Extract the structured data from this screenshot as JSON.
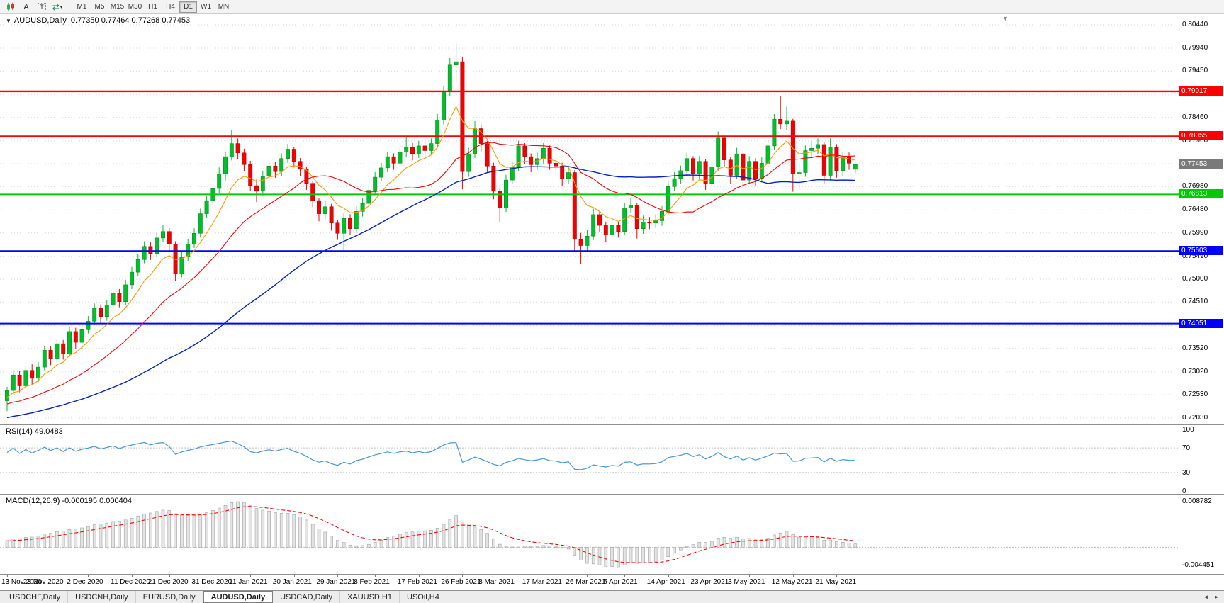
{
  "toolbar": {
    "icons": [
      {
        "name": "candlestick-chart-icon"
      },
      {
        "name": "cursor-tool-icon",
        "glyph": "A"
      },
      {
        "name": "text-tool-icon",
        "glyph": "T"
      },
      {
        "name": "autoscroll-icon",
        "glyph": "⇄",
        "caret": "▾"
      }
    ],
    "timeframes": [
      {
        "label": "M1"
      },
      {
        "label": "M5"
      },
      {
        "label": "M15"
      },
      {
        "label": "M30"
      },
      {
        "label": "H1"
      },
      {
        "label": "H4"
      },
      {
        "label": "D1"
      },
      {
        "label": "W1"
      },
      {
        "label": "MN"
      }
    ],
    "active_timeframe": "D1"
  },
  "main_chart": {
    "collapse_glyph": "▼",
    "title": "AUDUSD,Daily",
    "ohlc": "0.77350 0.77464 0.77268 0.77453",
    "shift_marker_glyph": "▼"
  },
  "chart_data": {
    "type": "candlestick",
    "symbol": "AUDUSD",
    "timeframe": "Daily",
    "last_candle": {
      "open": 0.7735,
      "high": 0.77464,
      "low": 0.77268,
      "close": 0.77453
    },
    "y_axis": {
      "max": 0.8044,
      "min": 0.7203,
      "ticks": [
        {
          "label": "0.80440",
          "price": 0.8044
        },
        {
          "label": "0.79940",
          "price": 0.7994
        },
        {
          "label": "0.79450",
          "price": 0.7945
        },
        {
          "label": "0.78950",
          "price": 0.7895
        },
        {
          "label": "0.78460",
          "price": 0.7846
        },
        {
          "label": "0.77960",
          "price": 0.7796
        },
        {
          "label": "0.77470",
          "price": 0.7747
        },
        {
          "label": "0.76980",
          "price": 0.7698
        },
        {
          "label": "0.76480",
          "price": 0.7648
        },
        {
          "label": "0.75990",
          "price": 0.7599
        },
        {
          "label": "0.75490",
          "price": 0.7549
        },
        {
          "label": "0.75000",
          "price": 0.75
        },
        {
          "label": "0.74510",
          "price": 0.7451
        },
        {
          "label": "0.74010",
          "price": 0.7401
        },
        {
          "label": "0.73520",
          "price": 0.7352
        },
        {
          "label": "0.73020",
          "price": 0.7302
        },
        {
          "label": "0.72530",
          "price": 0.7253
        },
        {
          "label": "0.72030",
          "price": 0.7203
        }
      ]
    },
    "current_price": {
      "label": "0.77453",
      "price": 0.77453,
      "box_color": "#7a7a7a"
    },
    "horizontal_lines": [
      {
        "label": "0.79017",
        "price": 0.79017,
        "color": "#ff0000",
        "width": 2.4
      },
      {
        "label": "0.78055",
        "price": 0.78055,
        "color": "#ff0000",
        "width": 2.4
      },
      {
        "label": "0.76813",
        "price": 0.76813,
        "color": "#00ca00",
        "width": 2
      },
      {
        "label": "0.75603",
        "price": 0.75603,
        "color": "#0000ff",
        "width": 2
      },
      {
        "label": "0.74051",
        "price": 0.74051,
        "color": "#0000ff",
        "width": 2
      }
    ],
    "up_color": "#00bf2a",
    "down_color": "#f40000",
    "up_border": "#077d1c",
    "down_border": "#9b0000",
    "moving_averages": [
      {
        "name": "ma-fast",
        "method": "ema",
        "period": 8,
        "color": "#ff9900",
        "width": 1.1
      },
      {
        "name": "ma-medium",
        "method": "sma",
        "period": 20,
        "color": "#ff0000",
        "width": 1.1
      },
      {
        "name": "ma-slow",
        "method": "sma",
        "period": 50,
        "color": "#0022cc",
        "width": 1.4
      }
    ],
    "candles_ohlc": [
      [
        0.724,
        0.727,
        0.7218,
        0.7262
      ],
      [
        0.7262,
        0.7305,
        0.7252,
        0.7295
      ],
      [
        0.7295,
        0.7303,
        0.7258,
        0.7272
      ],
      [
        0.7272,
        0.7315,
        0.7265,
        0.7305
      ],
      [
        0.7305,
        0.7318,
        0.7275,
        0.7288
      ],
      [
        0.7288,
        0.7323,
        0.728,
        0.7312
      ],
      [
        0.7312,
        0.7358,
        0.7305,
        0.7348
      ],
      [
        0.7348,
        0.7356,
        0.7316,
        0.733
      ],
      [
        0.733,
        0.7372,
        0.7322,
        0.7362
      ],
      [
        0.7362,
        0.737,
        0.7328,
        0.734
      ],
      [
        0.734,
        0.7398,
        0.7334,
        0.7388
      ],
      [
        0.7388,
        0.7396,
        0.735,
        0.7365
      ],
      [
        0.7365,
        0.7401,
        0.7357,
        0.7392
      ],
      [
        0.7392,
        0.7421,
        0.7384,
        0.741
      ],
      [
        0.741,
        0.7448,
        0.7402,
        0.7438
      ],
      [
        0.7438,
        0.7446,
        0.7407,
        0.742
      ],
      [
        0.742,
        0.7456,
        0.7411,
        0.7445
      ],
      [
        0.7445,
        0.7483,
        0.7437,
        0.747
      ],
      [
        0.747,
        0.7479,
        0.744,
        0.7452
      ],
      [
        0.7452,
        0.7499,
        0.7444,
        0.7488
      ],
      [
        0.7488,
        0.7526,
        0.7479,
        0.7515
      ],
      [
        0.7515,
        0.7553,
        0.7507,
        0.7542
      ],
      [
        0.7542,
        0.7581,
        0.7534,
        0.757
      ],
      [
        0.757,
        0.7579,
        0.7541,
        0.7555
      ],
      [
        0.7555,
        0.7599,
        0.7547,
        0.7588
      ],
      [
        0.7588,
        0.7616,
        0.7579,
        0.7602
      ],
      [
        0.7602,
        0.7609,
        0.7561,
        0.7575
      ],
      [
        0.7575,
        0.7581,
        0.7497,
        0.7512
      ],
      [
        0.7512,
        0.7559,
        0.7504,
        0.7548
      ],
      [
        0.7548,
        0.7586,
        0.7539,
        0.7575
      ],
      [
        0.7575,
        0.7609,
        0.7567,
        0.7598
      ],
      [
        0.7598,
        0.7651,
        0.7589,
        0.764
      ],
      [
        0.764,
        0.7679,
        0.7631,
        0.7668
      ],
      [
        0.7668,
        0.7706,
        0.7659,
        0.7694
      ],
      [
        0.7694,
        0.7739,
        0.7684,
        0.7725
      ],
      [
        0.7725,
        0.7773,
        0.7711,
        0.7762
      ],
      [
        0.7762,
        0.7819,
        0.7754,
        0.779
      ],
      [
        0.779,
        0.7801,
        0.7757,
        0.777
      ],
      [
        0.777,
        0.7779,
        0.7731,
        0.7745
      ],
      [
        0.7745,
        0.7753,
        0.7689,
        0.77
      ],
      [
        0.77,
        0.7713,
        0.7665,
        0.7688
      ],
      [
        0.7688,
        0.7731,
        0.7679,
        0.772
      ],
      [
        0.772,
        0.7753,
        0.7711,
        0.7742
      ],
      [
        0.7742,
        0.7751,
        0.7717,
        0.773
      ],
      [
        0.773,
        0.7769,
        0.7721,
        0.7758
      ],
      [
        0.7758,
        0.7789,
        0.7749,
        0.7778
      ],
      [
        0.7778,
        0.7783,
        0.7739,
        0.7752
      ],
      [
        0.7752,
        0.7759,
        0.7721,
        0.7735
      ],
      [
        0.7735,
        0.7741,
        0.7691,
        0.7705
      ],
      [
        0.7705,
        0.7711,
        0.7654,
        0.7668
      ],
      [
        0.7668,
        0.7673,
        0.7624,
        0.764
      ],
      [
        0.764,
        0.7669,
        0.7629,
        0.7655
      ],
      [
        0.7655,
        0.7661,
        0.7604,
        0.762
      ],
      [
        0.762,
        0.7626,
        0.7584,
        0.7598
      ],
      [
        0.7598,
        0.7641,
        0.7562,
        0.763
      ],
      [
        0.763,
        0.7639,
        0.7594,
        0.7608
      ],
      [
        0.7608,
        0.7656,
        0.7599,
        0.7645
      ],
      [
        0.7645,
        0.7673,
        0.7634,
        0.7662
      ],
      [
        0.7662,
        0.7701,
        0.7654,
        0.769
      ],
      [
        0.769,
        0.7729,
        0.7681,
        0.7718
      ],
      [
        0.7718,
        0.7749,
        0.7709,
        0.7738
      ],
      [
        0.7738,
        0.7773,
        0.7729,
        0.7762
      ],
      [
        0.7762,
        0.7769,
        0.7734,
        0.7748
      ],
      [
        0.7748,
        0.7783,
        0.7739,
        0.7772
      ],
      [
        0.7772,
        0.7805,
        0.7761,
        0.7782
      ],
      [
        0.7782,
        0.7791,
        0.7754,
        0.7768
      ],
      [
        0.7768,
        0.7796,
        0.7759,
        0.7785
      ],
      [
        0.7785,
        0.7793,
        0.7761,
        0.7775
      ],
      [
        0.7775,
        0.7801,
        0.7767,
        0.779
      ],
      [
        0.779,
        0.7853,
        0.7781,
        0.784
      ],
      [
        0.784,
        0.7913,
        0.7831,
        0.7902
      ],
      [
        0.7902,
        0.7973,
        0.7891,
        0.7958
      ],
      [
        0.7958,
        0.8007,
        0.792,
        0.7965
      ],
      [
        0.7965,
        0.7976,
        0.7692,
        0.773
      ],
      [
        0.773,
        0.7781,
        0.7719,
        0.7768
      ],
      [
        0.7768,
        0.7838,
        0.7759,
        0.7822
      ],
      [
        0.7822,
        0.7831,
        0.7773,
        0.779
      ],
      [
        0.779,
        0.7796,
        0.7729,
        0.7742
      ],
      [
        0.7742,
        0.7749,
        0.7671,
        0.7688
      ],
      [
        0.7688,
        0.7693,
        0.7621,
        0.7652
      ],
      [
        0.7652,
        0.7723,
        0.7644,
        0.7712
      ],
      [
        0.7712,
        0.7751,
        0.7703,
        0.774
      ],
      [
        0.774,
        0.7796,
        0.7731,
        0.7785
      ],
      [
        0.7785,
        0.7791,
        0.7746,
        0.7762
      ],
      [
        0.7762,
        0.7769,
        0.7729,
        0.7745
      ],
      [
        0.7745,
        0.7771,
        0.7734,
        0.7758
      ],
      [
        0.7758,
        0.7791,
        0.7747,
        0.778
      ],
      [
        0.778,
        0.7786,
        0.7734,
        0.7748
      ],
      [
        0.7748,
        0.7759,
        0.7727,
        0.7742
      ],
      [
        0.7742,
        0.7749,
        0.7699,
        0.7715
      ],
      [
        0.7715,
        0.7741,
        0.7704,
        0.7728
      ],
      [
        0.7728,
        0.7733,
        0.7561,
        0.7585
      ],
      [
        0.7585,
        0.7599,
        0.7532,
        0.7572
      ],
      [
        0.7572,
        0.7606,
        0.7559,
        0.7592
      ],
      [
        0.7592,
        0.7651,
        0.7584,
        0.7638
      ],
      [
        0.7638,
        0.7646,
        0.7601,
        0.7615
      ],
      [
        0.7615,
        0.7623,
        0.7579,
        0.7595
      ],
      [
        0.7595,
        0.7629,
        0.7587,
        0.7615
      ],
      [
        0.7615,
        0.7623,
        0.7589,
        0.7602
      ],
      [
        0.7602,
        0.7663,
        0.7594,
        0.7652
      ],
      [
        0.7652,
        0.7673,
        0.7641,
        0.7658
      ],
      [
        0.7658,
        0.7663,
        0.7587,
        0.7608
      ],
      [
        0.7608,
        0.7636,
        0.7597,
        0.7622
      ],
      [
        0.7622,
        0.7633,
        0.7607,
        0.762
      ],
      [
        0.762,
        0.7639,
        0.7609,
        0.7625
      ],
      [
        0.7625,
        0.7656,
        0.7614,
        0.7645
      ],
      [
        0.7645,
        0.7709,
        0.7637,
        0.7698
      ],
      [
        0.7698,
        0.7729,
        0.7689,
        0.7715
      ],
      [
        0.7715,
        0.7743,
        0.7704,
        0.7732
      ],
      [
        0.7732,
        0.7771,
        0.7721,
        0.7758
      ],
      [
        0.7758,
        0.7763,
        0.7711,
        0.7725
      ],
      [
        0.7725,
        0.7763,
        0.7714,
        0.7752
      ],
      [
        0.7752,
        0.7757,
        0.7691,
        0.7705
      ],
      [
        0.7705,
        0.7751,
        0.7697,
        0.774
      ],
      [
        0.774,
        0.7816,
        0.7731,
        0.7802
      ],
      [
        0.7802,
        0.7809,
        0.7741,
        0.7755
      ],
      [
        0.7755,
        0.7761,
        0.7704,
        0.7722
      ],
      [
        0.7722,
        0.7781,
        0.7714,
        0.7768
      ],
      [
        0.7768,
        0.7773,
        0.7699,
        0.7712
      ],
      [
        0.7712,
        0.7763,
        0.7704,
        0.7752
      ],
      [
        0.7752,
        0.7759,
        0.7699,
        0.7715
      ],
      [
        0.7715,
        0.7761,
        0.7707,
        0.7748
      ],
      [
        0.7748,
        0.7796,
        0.7739,
        0.7785
      ],
      [
        0.7785,
        0.7853,
        0.7777,
        0.7842
      ],
      [
        0.7842,
        0.7891,
        0.7821,
        0.7832
      ],
      [
        0.7832,
        0.7869,
        0.7819,
        0.7838
      ],
      [
        0.7838,
        0.7843,
        0.7687,
        0.7725
      ],
      [
        0.7725,
        0.7746,
        0.7691,
        0.7728
      ],
      [
        0.7728,
        0.7786,
        0.7719,
        0.7775
      ],
      [
        0.7775,
        0.7796,
        0.7761,
        0.778
      ],
      [
        0.778,
        0.7801,
        0.7767,
        0.7788
      ],
      [
        0.7788,
        0.7793,
        0.7705,
        0.7722
      ],
      [
        0.7722,
        0.7801,
        0.7711,
        0.7782
      ],
      [
        0.7782,
        0.7789,
        0.7717,
        0.7732
      ],
      [
        0.7732,
        0.7773,
        0.7721,
        0.776
      ],
      [
        0.776,
        0.7771,
        0.7734,
        0.7748
      ],
      [
        0.7735,
        0.77464,
        0.77268,
        0.77453
      ]
    ],
    "date_labels": [
      {
        "label": "13 Nov 2020",
        "index": 0
      },
      {
        "label": "23 Nov 2020",
        "index": 6
      },
      {
        "label": "2 Dec 2020",
        "index": 13
      },
      {
        "label": "11 Dec 2020",
        "index": 20
      },
      {
        "label": "21 Dec 2020",
        "index": 26
      },
      {
        "label": "31 Dec 2020",
        "index": 33
      },
      {
        "label": "11 Jan 2021",
        "index": 39
      },
      {
        "label": "20 Jan 2021",
        "index": 46
      },
      {
        "label": "29 Jan 2021",
        "index": 53
      },
      {
        "label": "8 Feb 2021",
        "index": 59
      },
      {
        "label": "17 Feb 2021",
        "index": 66
      },
      {
        "label": "26 Feb 2021",
        "index": 73
      },
      {
        "label": "8 Mar 2021",
        "index": 79
      },
      {
        "label": "17 Mar 2021",
        "index": 86
      },
      {
        "label": "26 Mar 2021",
        "index": 93
      },
      {
        "label": "5 Apr 2021",
        "index": 99
      },
      {
        "label": "14 Apr 2021",
        "index": 106
      },
      {
        "label": "23 Apr 2021",
        "index": 113
      },
      {
        "label": "3 May 2021",
        "index": 119
      },
      {
        "label": "12 May 2021",
        "index": 126
      },
      {
        "label": "21 May 2021",
        "index": 133
      }
    ]
  },
  "rsi": {
    "label": "RSI(14) 49.0483",
    "period": 14,
    "last_value": 49.0483,
    "line_color": "#4796dc",
    "levels": [
      70,
      30
    ],
    "scale_ticks": [
      {
        "label": "100",
        "value": 100
      },
      {
        "label": "70",
        "value": 70
      },
      {
        "label": "30",
        "value": 30
      },
      {
        "label": "0",
        "value": 0
      }
    ]
  },
  "macd": {
    "label": "MACD(12,26,9) -0.000195 0.000404",
    "fast": 12,
    "slow": 26,
    "signal_period": 9,
    "main_value": -0.000195,
    "signal_value": 0.000404,
    "scale_top": "0.008782",
    "scale_bottom": "-0.004451",
    "histogram_fill": "#e4e4e4",
    "histogram_border": "#a0a0a0",
    "signal_color": "#ff0000"
  },
  "tabs": {
    "items": [
      {
        "label": "USDCHF,Daily",
        "active": false
      },
      {
        "label": "USDCNH,Daily",
        "active": false
      },
      {
        "label": "EURUSD,Daily",
        "active": false
      },
      {
        "label": "AUDUSD,Daily",
        "active": true
      },
      {
        "label": "USDCAD,Daily",
        "active": false
      },
      {
        "label": "XAUUSD,H1",
        "active": false
      },
      {
        "label": "USOil,H4",
        "active": false
      }
    ],
    "scroll_left": "◄",
    "scroll_right": "►"
  }
}
